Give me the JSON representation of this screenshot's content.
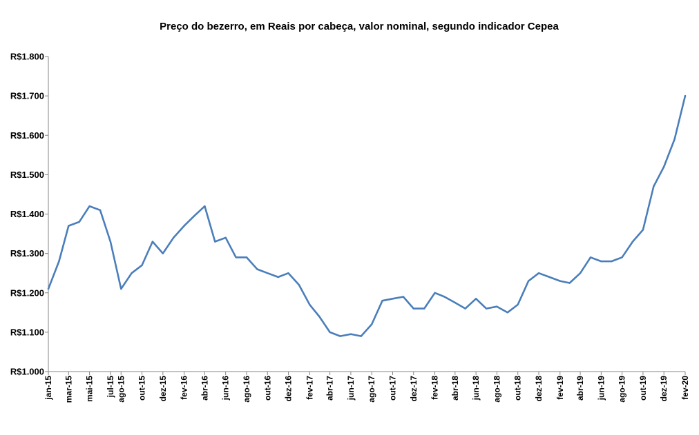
{
  "chart_data": {
    "type": "line",
    "title": "Preço do bezerro,  em Reais por cabeça, valor nominal, segundo indicador Cepea",
    "xlabel": "",
    "ylabel": "",
    "ylim": [
      1000,
      1800
    ],
    "y_ticks": [
      1000,
      1100,
      1200,
      1300,
      1400,
      1500,
      1600,
      1700,
      1800
    ],
    "y_tick_labels": [
      "R$1.000",
      "R$1.100",
      "R$1.200",
      "R$1.300",
      "R$1.400",
      "R$1.500",
      "R$1.600",
      "R$1.700",
      "R$1.800"
    ],
    "x_tick_labels": [
      "jan-15",
      "mar-15",
      "mai-15",
      "jul-15",
      "ago-15",
      "out-15",
      "dez-15",
      "fev-16",
      "abr-16",
      "jun-16",
      "ago-16",
      "out-16",
      "dez-16",
      "fev-17",
      "abr-17",
      "jun-17",
      "ago-17",
      "out-17",
      "dez-17",
      "fev-18",
      "abr-18",
      "jun-18",
      "ago-18",
      "out-18",
      "dez-18",
      "fev-19",
      "abr-19",
      "jun-19",
      "ago-19",
      "out-19",
      "dez-19",
      "fev-20"
    ],
    "grid": false,
    "legend": "none",
    "series_color": "#4a7ebb",
    "series": [
      {
        "x": [
          "2015-01",
          "2015-02",
          "2015-03",
          "2015-04",
          "2015-05",
          "2015-06",
          "2015-07",
          "2015-08",
          "2015-09",
          "2015-10",
          "2015-11",
          "2015-12",
          "2016-01",
          "2016-02",
          "2016-03",
          "2016-04",
          "2016-05",
          "2016-06",
          "2016-07",
          "2016-08",
          "2016-09",
          "2016-10",
          "2016-11",
          "2016-12",
          "2017-01",
          "2017-02",
          "2017-03",
          "2017-04",
          "2017-05",
          "2017-06",
          "2017-07",
          "2017-08",
          "2017-09",
          "2017-10",
          "2017-11",
          "2017-12",
          "2018-01",
          "2018-02",
          "2018-03",
          "2018-04",
          "2018-05",
          "2018-06",
          "2018-07",
          "2018-08",
          "2018-09",
          "2018-10",
          "2018-11",
          "2018-12",
          "2019-01",
          "2019-02",
          "2019-03",
          "2019-04",
          "2019-05",
          "2019-06",
          "2019-07",
          "2019-08",
          "2019-09",
          "2019-10",
          "2019-11",
          "2019-12",
          "2020-01",
          "2020-02"
        ],
        "values": [
          1210,
          1280,
          1370,
          1380,
          1420,
          1410,
          1330,
          1210,
          1250,
          1270,
          1330,
          1300,
          1340,
          1370,
          1395,
          1420,
          1330,
          1340,
          1290,
          1290,
          1260,
          1250,
          1240,
          1250,
          1220,
          1170,
          1140,
          1100,
          1090,
          1095,
          1090,
          1120,
          1180,
          1185,
          1190,
          1160,
          1160,
          1200,
          1190,
          1175,
          1160,
          1185,
          1160,
          1165,
          1150,
          1170,
          1230,
          1250,
          1240,
          1230,
          1225,
          1250,
          1290,
          1280,
          1280,
          1290,
          1330,
          1360,
          1470,
          1520,
          1590,
          1700
        ]
      }
    ]
  }
}
